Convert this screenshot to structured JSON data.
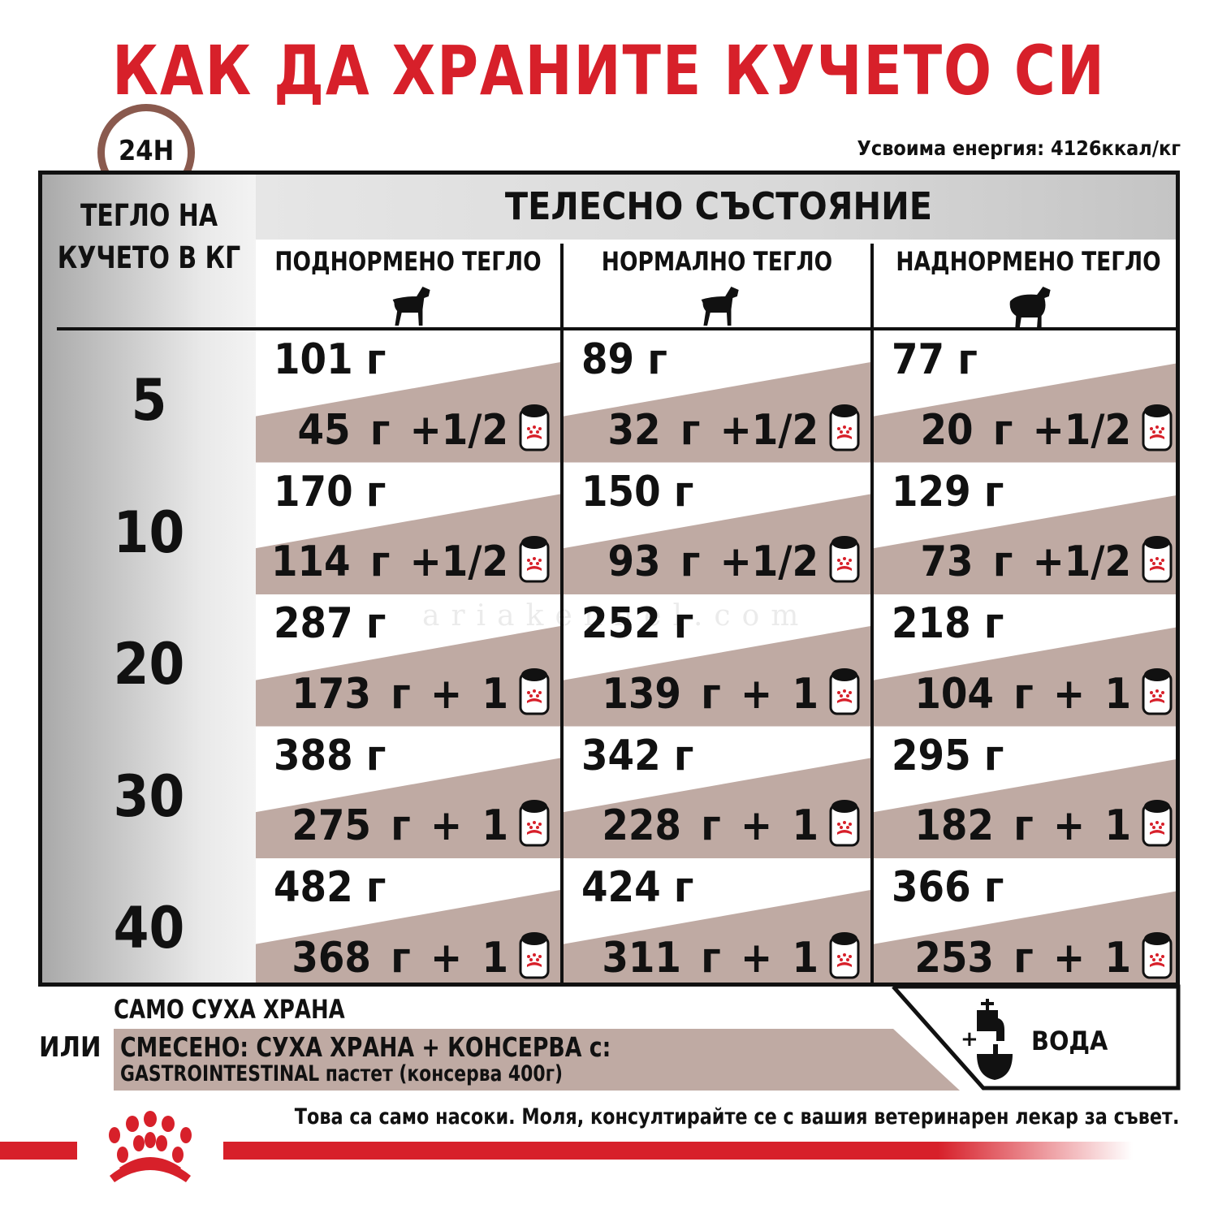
{
  "title": "КАК ДА ХРАНИТЕ КУЧЕТО СИ",
  "energy": "Усвоима енергия: 4126ккал/кг",
  "clock_label": "24H",
  "table": {
    "weight_header": "ТЕГЛО НА КУЧЕТО В КГ",
    "condition_header": "ТЕЛЕСНО СЪСТОЯНИЕ",
    "columns": [
      "ПОДНОРМЕНО ТЕГЛО",
      "НОРМАЛНО ТЕГЛО",
      "НАДНОРМЕНО ТЕГЛО"
    ],
    "rows": [
      {
        "kg": "5",
        "cells": [
          {
            "dry": "101 г",
            "mix": "45 г +1/2"
          },
          {
            "dry": "89 г",
            "mix": "32 г +1/2"
          },
          {
            "dry": "77 г",
            "mix": "20 г +1/2"
          }
        ]
      },
      {
        "kg": "10",
        "cells": [
          {
            "dry": "170 г",
            "mix": "114 г +1/2"
          },
          {
            "dry": "150 г",
            "mix": "93 г +1/2"
          },
          {
            "dry": "129 г",
            "mix": "73 г +1/2"
          }
        ]
      },
      {
        "kg": "20",
        "cells": [
          {
            "dry": "287 г",
            "mix": "173 г + 1"
          },
          {
            "dry": "252 г",
            "mix": "139 г + 1"
          },
          {
            "dry": "218 г",
            "mix": "104 г + 1"
          }
        ]
      },
      {
        "kg": "30",
        "cells": [
          {
            "dry": "388 г",
            "mix": "275 г + 1"
          },
          {
            "dry": "342 г",
            "mix": "228 г + 1"
          },
          {
            "dry": "295 г",
            "mix": "182 г + 1"
          }
        ]
      },
      {
        "kg": "40",
        "cells": [
          {
            "dry": "482 г",
            "mix": "368 г + 1"
          },
          {
            "dry": "424 г",
            "mix": "311 г + 1"
          },
          {
            "dry": "366 г",
            "mix": "253 г + 1"
          }
        ]
      }
    ]
  },
  "legend": {
    "dry_only": "САМО СУХА ХРАНА",
    "or": "ИЛИ",
    "mixed_line1": "СМЕСЕНО: СУХА ХРАНА + КОНСЕРВА с:",
    "mixed_line2": "GASTROINTESTINAL пастет (консерва 400г)",
    "water_plus": "+",
    "water": "ВОДА"
  },
  "disclaimer": "Това са само насоки. Моля, консултирайте се с вашия ветеринарен лекар за съвет.",
  "watermark": "ariakennel.com",
  "colors": {
    "brand_red": "#d7202a",
    "mixed_fill": "#bfaaa3",
    "clock": "#8a5a4e"
  },
  "icons": [
    "clock-icon",
    "dog-icon",
    "can-icon",
    "tap-bowl-icon",
    "royal-canin-crown-logo"
  ]
}
